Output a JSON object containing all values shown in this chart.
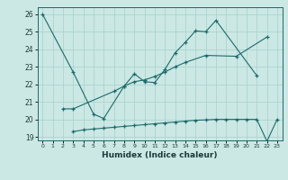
{
  "bg_color": "#cce8e4",
  "grid_color": "#aad4d0",
  "line_color": "#1a6b6b",
  "xlabel": "Humidex (Indice chaleur)",
  "xlim": [
    -0.5,
    23.5
  ],
  "ylim": [
    18.8,
    26.4
  ],
  "yticks": [
    19,
    20,
    21,
    22,
    23,
    24,
    25,
    26
  ],
  "xticks": [
    0,
    1,
    2,
    3,
    4,
    5,
    6,
    7,
    8,
    9,
    10,
    11,
    12,
    13,
    14,
    15,
    16,
    17,
    18,
    19,
    20,
    21,
    22,
    23
  ],
  "s1_x": [
    0,
    3,
    5,
    6,
    8,
    9,
    10,
    11,
    12,
    13,
    14,
    15,
    16,
    17,
    21
  ],
  "s1_y": [
    26.0,
    22.7,
    20.3,
    20.05,
    21.9,
    22.6,
    22.15,
    22.1,
    22.85,
    23.8,
    24.4,
    25.05,
    25.0,
    25.65,
    22.5
  ],
  "s2_x": [
    2,
    3,
    7,
    8,
    9,
    10,
    11,
    12,
    13,
    14,
    16,
    19,
    22
  ],
  "s2_y": [
    20.6,
    20.6,
    21.6,
    21.9,
    22.15,
    22.25,
    22.45,
    22.7,
    23.0,
    23.25,
    23.65,
    23.6,
    24.7
  ],
  "s3_x": [
    3,
    4,
    5,
    6,
    7,
    8,
    9,
    10,
    11,
    12,
    13,
    14,
    15,
    16,
    17,
    18,
    19,
    20,
    21,
    22,
    23
  ],
  "s3_y": [
    19.3,
    19.4,
    19.45,
    19.5,
    19.55,
    19.6,
    19.65,
    19.7,
    19.75,
    19.8,
    19.85,
    19.9,
    19.95,
    19.97,
    20.0,
    20.0,
    20.0,
    20.0,
    20.0,
    18.75,
    20.0
  ]
}
